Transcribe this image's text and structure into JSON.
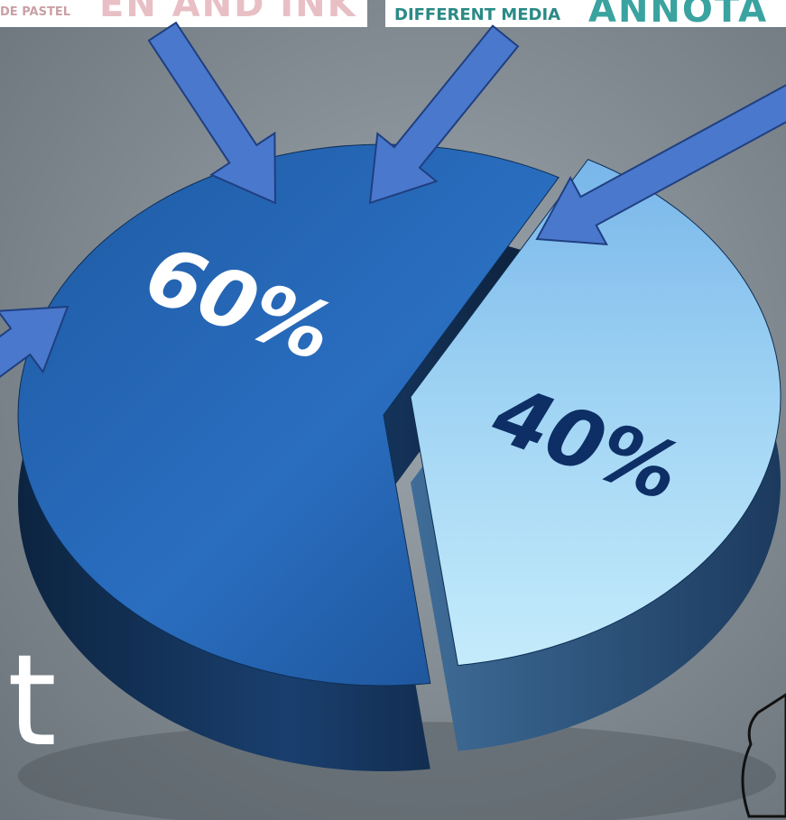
{
  "chart_data": {
    "type": "pie",
    "slices": [
      {
        "label": "60%",
        "value": 60
      },
      {
        "label": "40%",
        "value": 40
      }
    ]
  },
  "colors": {
    "dark_slice": "#2566b0",
    "light_slice": "#9fd2f2",
    "arrow": "#4a78cc",
    "dark_label": "#ffffff",
    "light_label": "#0d2f66"
  },
  "banners": {
    "left_small": "DE PASTEL",
    "left_big": "EN AND INK",
    "right_small": "DIFFERENT MEDIA",
    "right_big": "ANNOTA"
  },
  "background_letter": "t"
}
